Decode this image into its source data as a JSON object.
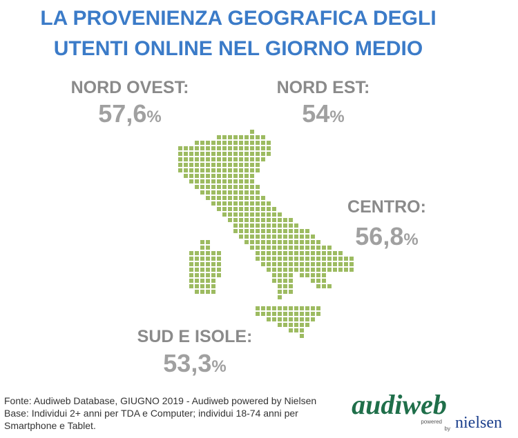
{
  "title": [
    "LA PROVENIENZA GEOGRAFICA DEGLI",
    "UTENTI ONLINE NEL GIORNO MEDIO"
  ],
  "regions": [
    {
      "name": "NORD OVEST:",
      "value": "57,6",
      "unit": "%"
    },
    {
      "name": "NORD EST:",
      "value": "54",
      "unit": "%"
    },
    {
      "name": "CENTRO:",
      "value": "56,8",
      "unit": "%"
    },
    {
      "name": "SUD E ISOLE:",
      "value": "53,3",
      "unit": "%"
    }
  ],
  "footer": [
    "Fonte: Audiweb Database, GIUGNO 2019 - Audiweb powered by Nielsen",
    "Base: Individui 2+ anni per TDA e Computer; individui 18-74 anni per",
    "Smartphone e Tablet."
  ],
  "logo": {
    "brand": "audiweb",
    "powered": "powered",
    "by": "by",
    "partner": "nielsen"
  }
}
